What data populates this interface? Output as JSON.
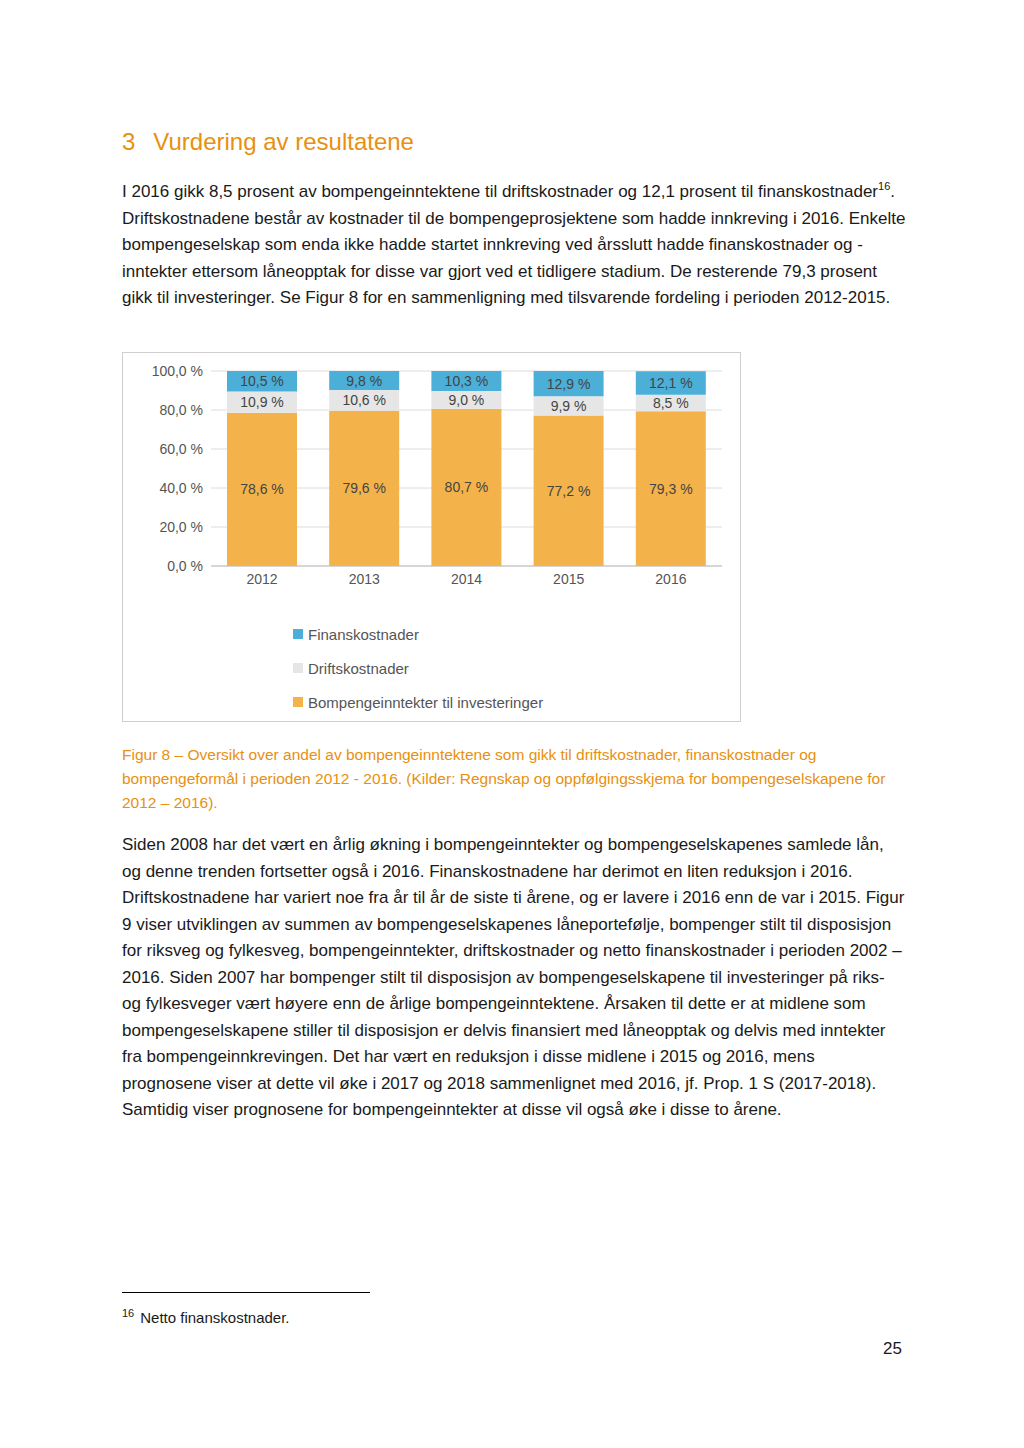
{
  "heading": {
    "section_number": 3,
    "text": "Vurdering av resultatene"
  },
  "paragraph_1": {
    "before_ref": "I 2016 gikk 8,5 prosent av bompengeinntektene til driftskostnader og 12,1 prosent til finanskostnader",
    "after_ref": ". Driftskostnadene består av kostnader til de bompengeprosjektene som hadde innkreving i 2016. Enkelte bompengeselskap som enda ikke hadde startet innkreving ved årsslutt hadde finanskostnader og -inntekter ettersom låneopptak for disse var gjort ved et tidligere stadium. De resterende 79,3 prosent gikk til investeringer. Se Figur 8 for en sammenligning med tilsvarende fordeling i perioden 2012-2015."
  },
  "chart_data": {
    "type": "bar",
    "stacked": true,
    "grid": true,
    "legend": "bottom",
    "data_labels": true,
    "categories": [
      "2012",
      "2013",
      "2014",
      "2015",
      "2016"
    ],
    "ylim": [
      0,
      100
    ],
    "yticks": [
      {
        "value": 0,
        "label": "0,0 %"
      },
      {
        "value": 20,
        "label": "20,0 %"
      },
      {
        "value": 40,
        "label": "40,0 %"
      },
      {
        "value": 60,
        "label": "60,0 %"
      },
      {
        "value": 80,
        "label": "80,0 %"
      },
      {
        "value": 100,
        "label": "100,0 %"
      }
    ],
    "series": [
      {
        "name": "Finanskostnader",
        "color": "#4bafd8",
        "values": [
          10.5,
          9.8,
          10.3,
          12.9,
          12.1
        ],
        "value_labels": [
          "10,5 %",
          "9,8 %",
          "10,3 %",
          "12,9 %",
          "12,1 %"
        ]
      },
      {
        "name": "Driftskostnader",
        "color": "#e6e6e6",
        "values": [
          10.9,
          10.6,
          9.0,
          9.9,
          8.5
        ],
        "value_labels": [
          "10,9 %",
          "10,6 %",
          "9,0 %",
          "9,9 %",
          "8,5 %"
        ]
      },
      {
        "name": "Bompengeinntekter til investeringer",
        "color": "#f3b24a",
        "values": [
          78.6,
          79.6,
          80.7,
          77.2,
          79.3
        ],
        "value_labels": [
          "78,6 %",
          "79,6 %",
          "80,7 %",
          "77,2 %",
          "79,3 %"
        ]
      }
    ]
  },
  "caption": "Figur 8 – Oversikt over andel av bompengeinntektene som gikk til driftskostnader, finanskostnader og bompengeformål i perioden 2012 - 2016. (Kilder: Regnskap og oppfølgingsskjema for bompengeselskapene for 2012 – 2016).",
  "paragraph_2": "Siden 2008 har det vært en årlig økning i bompengeinntekter og bompengeselskapenes samlede lån, og denne trenden fortsetter også i 2016. Finanskostnadene har derimot en liten reduksjon i 2016. Driftskostnadene har variert noe fra år til år de siste ti årene, og er lavere i 2016 enn de var i 2015. Figur 9 viser utviklingen av summen av bompengeselskapenes låneportefølje, bompenger stilt til disposisjon for riksveg og fylkesveg, bompengeinntekter, driftskostnader og netto finanskostnader i perioden 2002 – 2016. Siden 2007 har bompenger stilt til disposisjon av bompengeselskapene til investeringer på riks- og fylkesveger vært høyere enn de årlige bompengeinntektene. Årsaken til dette er at midlene som bompengeselskapene stiller til disposisjon er delvis finansiert med låneopptak og delvis med inntekter fra bompengeinnkrevingen. Det har vært en reduksjon i disse midlene i 2015 og 2016, mens prognosene viser at dette vil øke i 2017 og 2018 sammenlignet med 2016, jf. Prop. 1 S (2017-2018). Samtidig viser prognosene for bompengeinntekter at disse vil også øke i disse to årene.",
  "footnote": {
    "mark": "16",
    "text": "Netto finanskostnader."
  },
  "page_number": 25
}
